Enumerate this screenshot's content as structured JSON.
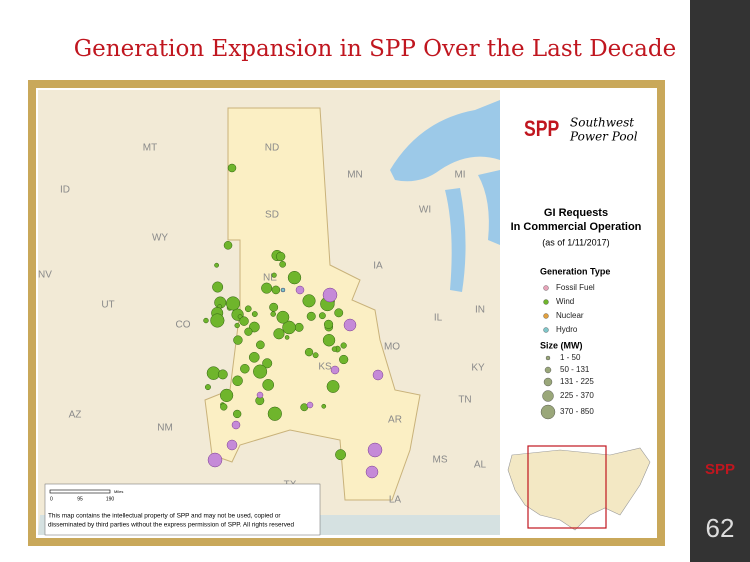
{
  "header": {
    "title": "Generation Expansion in SPP Over the Last Decade"
  },
  "logo": {
    "mark": "SPP",
    "name_lines": [
      "Southwest",
      "Power Pool"
    ]
  },
  "legend": {
    "title_lines": [
      "GI Requests",
      "In Commercial Operation"
    ],
    "date": "(as of 1/11/2017)",
    "type_title": "Generation Type",
    "types": [
      {
        "label": "Fossil Fuel",
        "color": "#e6a3b8"
      },
      {
        "label": "Wind",
        "color": "#6fb52c"
      },
      {
        "label": "Nuclear",
        "color": "#e0a040"
      },
      {
        "label": "Hydro",
        "color": "#7fc6c9"
      }
    ],
    "size_title": "Size (MW)",
    "sizes": [
      "1 - 50",
      "50 - 131",
      "131 - 225",
      "225 - 370",
      "370 - 850"
    ]
  },
  "states": [
    "MT",
    "ND",
    "MN",
    "SD",
    "WY",
    "ID",
    "NV",
    "UT",
    "CO",
    "NE",
    "IA",
    "KS",
    "MO",
    "IL",
    "IN",
    "WI",
    "MI",
    "NM",
    "AZ",
    "TX",
    "AR",
    "TN",
    "KY",
    "LA",
    "MS",
    "AL"
  ],
  "scale": {
    "labels": [
      "0",
      "95",
      "190"
    ],
    "unit": "Miles"
  },
  "disclaimer": [
    "This map contains the intellectual property of SPP and may not be used, copied or",
    "disseminated by third parties without the express permission of SPP.  All rights reserved"
  ],
  "sidebar": {
    "logo": "SPP",
    "page": "62"
  }
}
